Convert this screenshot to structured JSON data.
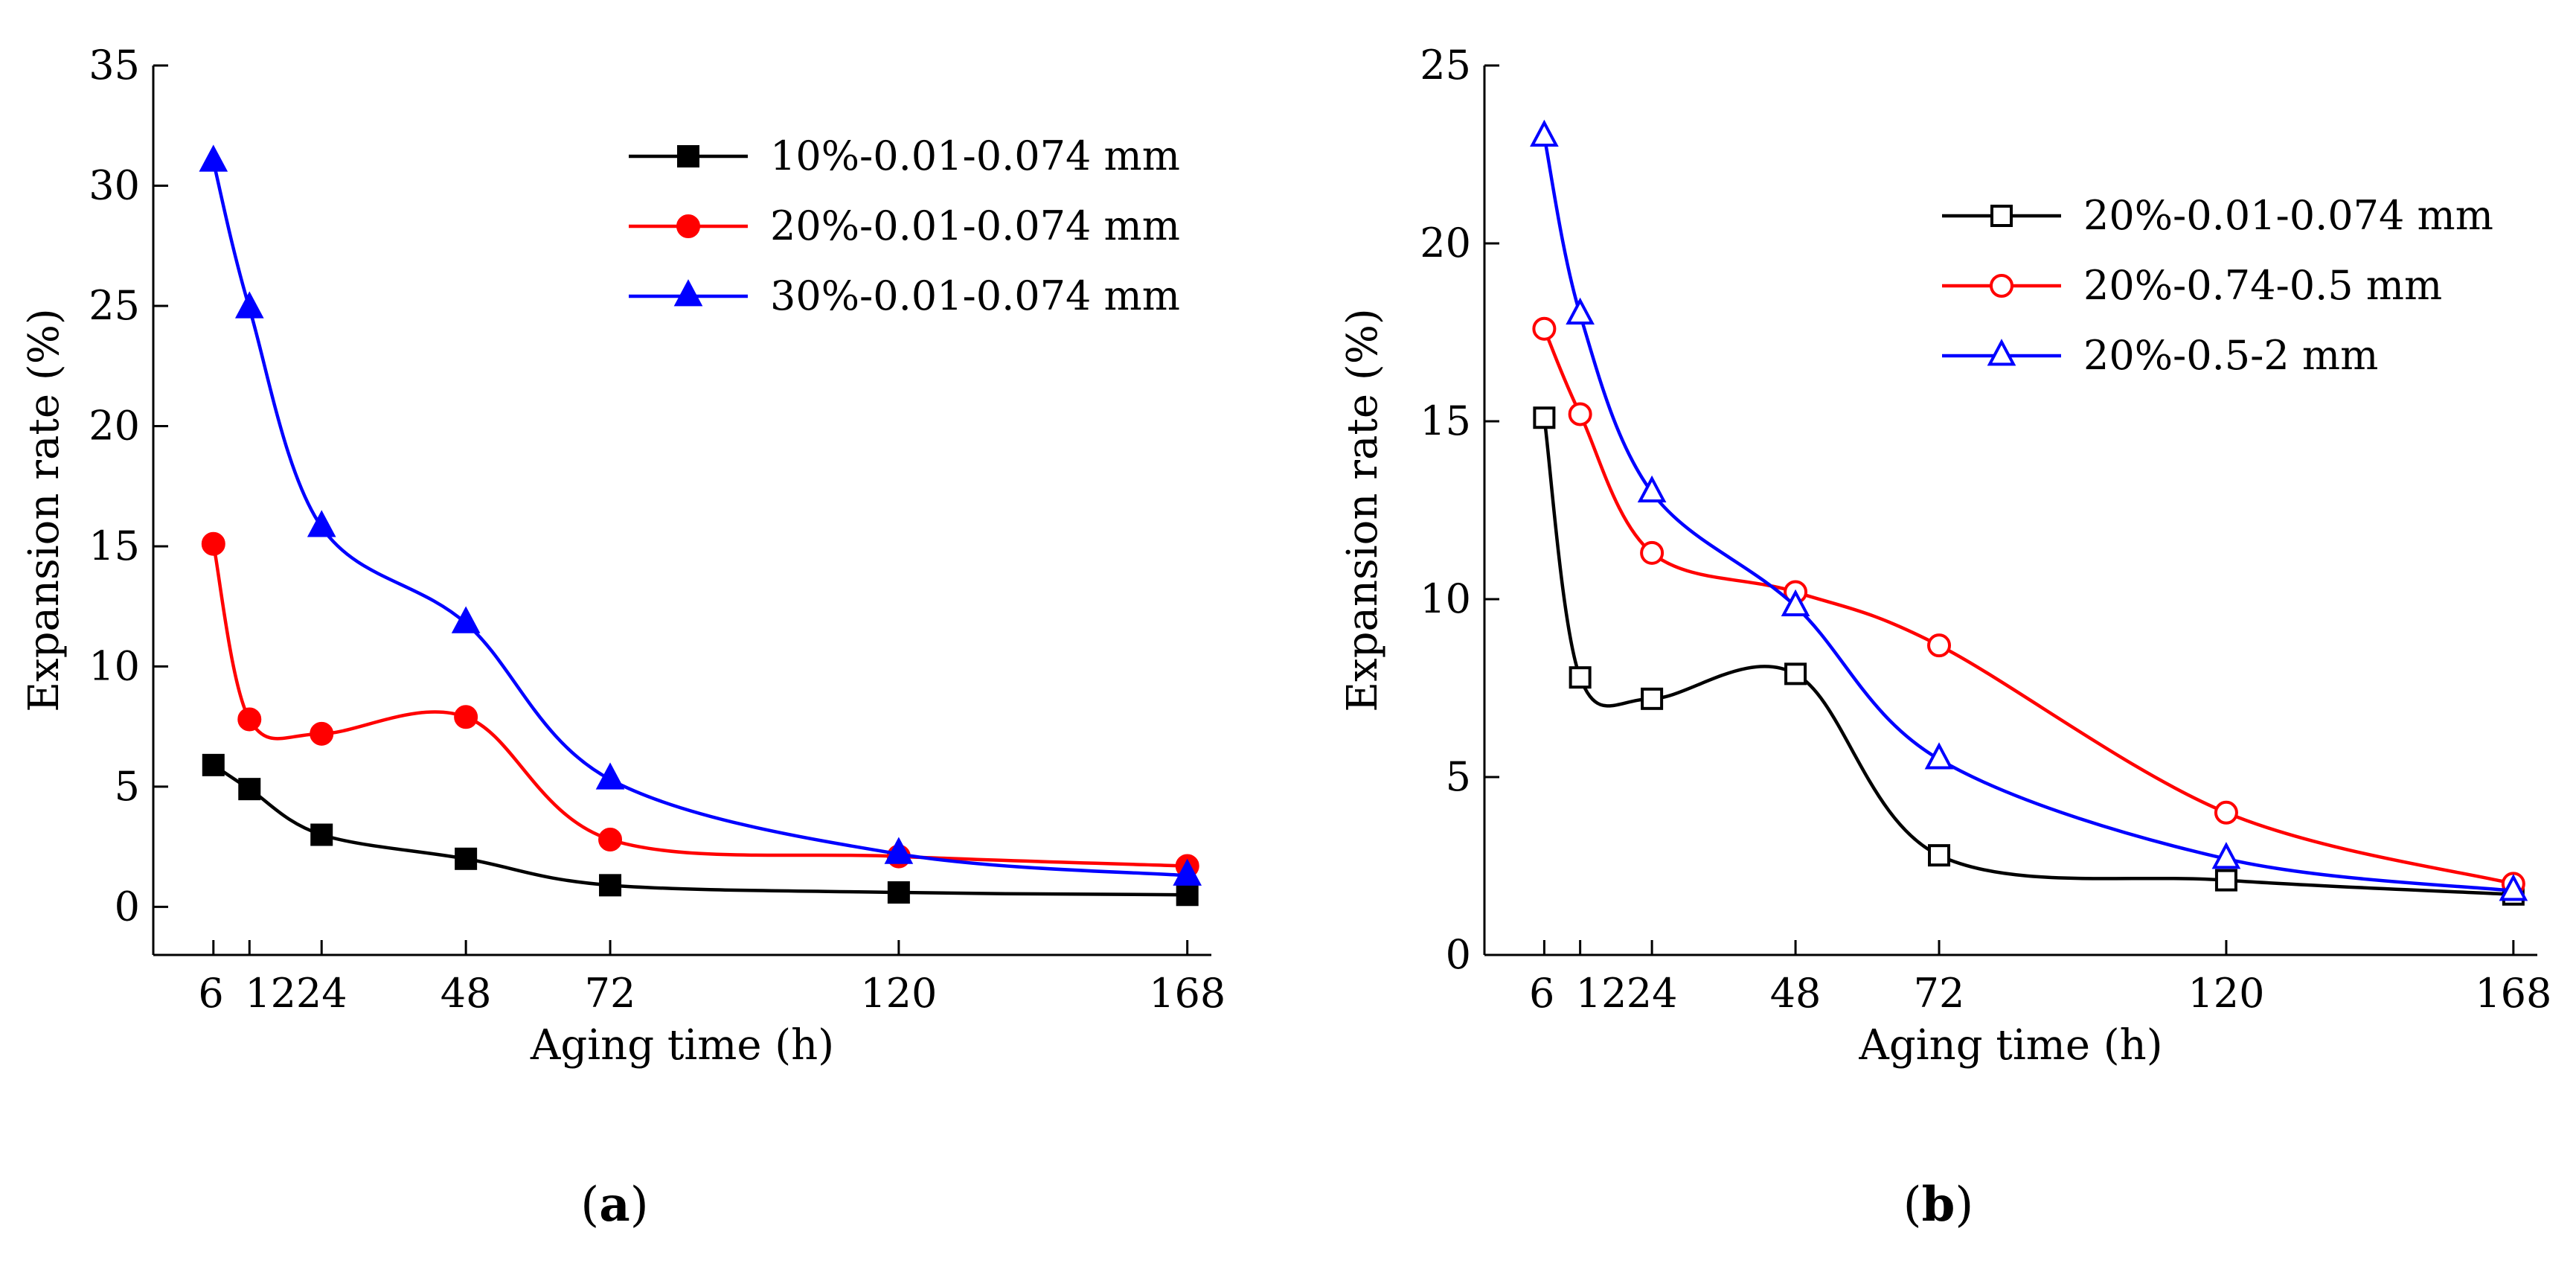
{
  "chart_data": [
    {
      "type": "line",
      "panel_label": "a",
      "title": "",
      "xlabel": "Aging time (h)",
      "ylabel": "Expansion rate (%)",
      "xlim": [
        -4,
        172
      ],
      "ylim": [
        -2,
        35
      ],
      "xticks": [
        6,
        12,
        24,
        48,
        72,
        120,
        168
      ],
      "xtick_labels": [
        "6",
        "12",
        "24",
        "48",
        "72",
        "120",
        "168"
      ],
      "yticks": [
        0,
        5,
        10,
        15,
        20,
        25,
        30,
        35
      ],
      "grid": false,
      "legend_position": "top-right",
      "series": [
        {
          "name": "10%-0.01-0.074 mm",
          "color": "#000000",
          "marker": "square",
          "filled": true,
          "x": [
            6,
            12,
            24,
            48,
            72,
            120,
            168
          ],
          "values": [
            5.9,
            4.9,
            3.0,
            2.0,
            0.9,
            0.6,
            0.5
          ]
        },
        {
          "name": "20%-0.01-0.074 mm",
          "color": "#ff0000",
          "marker": "circle",
          "filled": true,
          "x": [
            6,
            12,
            24,
            48,
            72,
            120,
            168
          ],
          "values": [
            15.1,
            7.8,
            7.2,
            7.9,
            2.8,
            2.1,
            1.7
          ]
        },
        {
          "name": "30%-0.01-0.074 mm",
          "color": "#0000ff",
          "marker": "triangle",
          "filled": true,
          "x": [
            6,
            12,
            24,
            48,
            72,
            120,
            168
          ],
          "values": [
            31.0,
            24.9,
            15.8,
            11.8,
            5.3,
            2.2,
            1.3
          ]
        }
      ]
    },
    {
      "type": "line",
      "panel_label": "b",
      "title": "",
      "xlabel": "Aging time (h)",
      "ylabel": "Expansion rate (%)",
      "xlim": [
        -4,
        172
      ],
      "ylim": [
        0,
        25
      ],
      "xticks": [
        6,
        12,
        24,
        48,
        72,
        120,
        168
      ],
      "xtick_labels": [
        "6",
        "12",
        "24",
        "48",
        "72",
        "120",
        "168"
      ],
      "yticks": [
        0,
        5,
        10,
        15,
        20,
        25
      ],
      "grid": false,
      "legend_position": "top-right",
      "series": [
        {
          "name": "20%-0.01-0.074 mm",
          "color": "#000000",
          "marker": "square",
          "filled": false,
          "x": [
            6,
            12,
            24,
            48,
            72,
            120,
            168
          ],
          "values": [
            15.1,
            7.8,
            7.2,
            7.9,
            2.8,
            2.1,
            1.7
          ]
        },
        {
          "name": "20%-0.74-0.5 mm",
          "color": "#ff0000",
          "marker": "circle",
          "filled": false,
          "x": [
            6,
            12,
            24,
            48,
            72,
            120,
            168
          ],
          "values": [
            17.6,
            15.2,
            11.3,
            10.2,
            8.7,
            4.0,
            2.0
          ]
        },
        {
          "name": "20%-0.5-2 mm",
          "color": "#0000ff",
          "marker": "triangle",
          "filled": false,
          "x": [
            6,
            12,
            24,
            48,
            72,
            120,
            168
          ],
          "values": [
            23.0,
            18.0,
            13.0,
            9.8,
            5.5,
            2.7,
            1.8
          ]
        }
      ]
    }
  ]
}
